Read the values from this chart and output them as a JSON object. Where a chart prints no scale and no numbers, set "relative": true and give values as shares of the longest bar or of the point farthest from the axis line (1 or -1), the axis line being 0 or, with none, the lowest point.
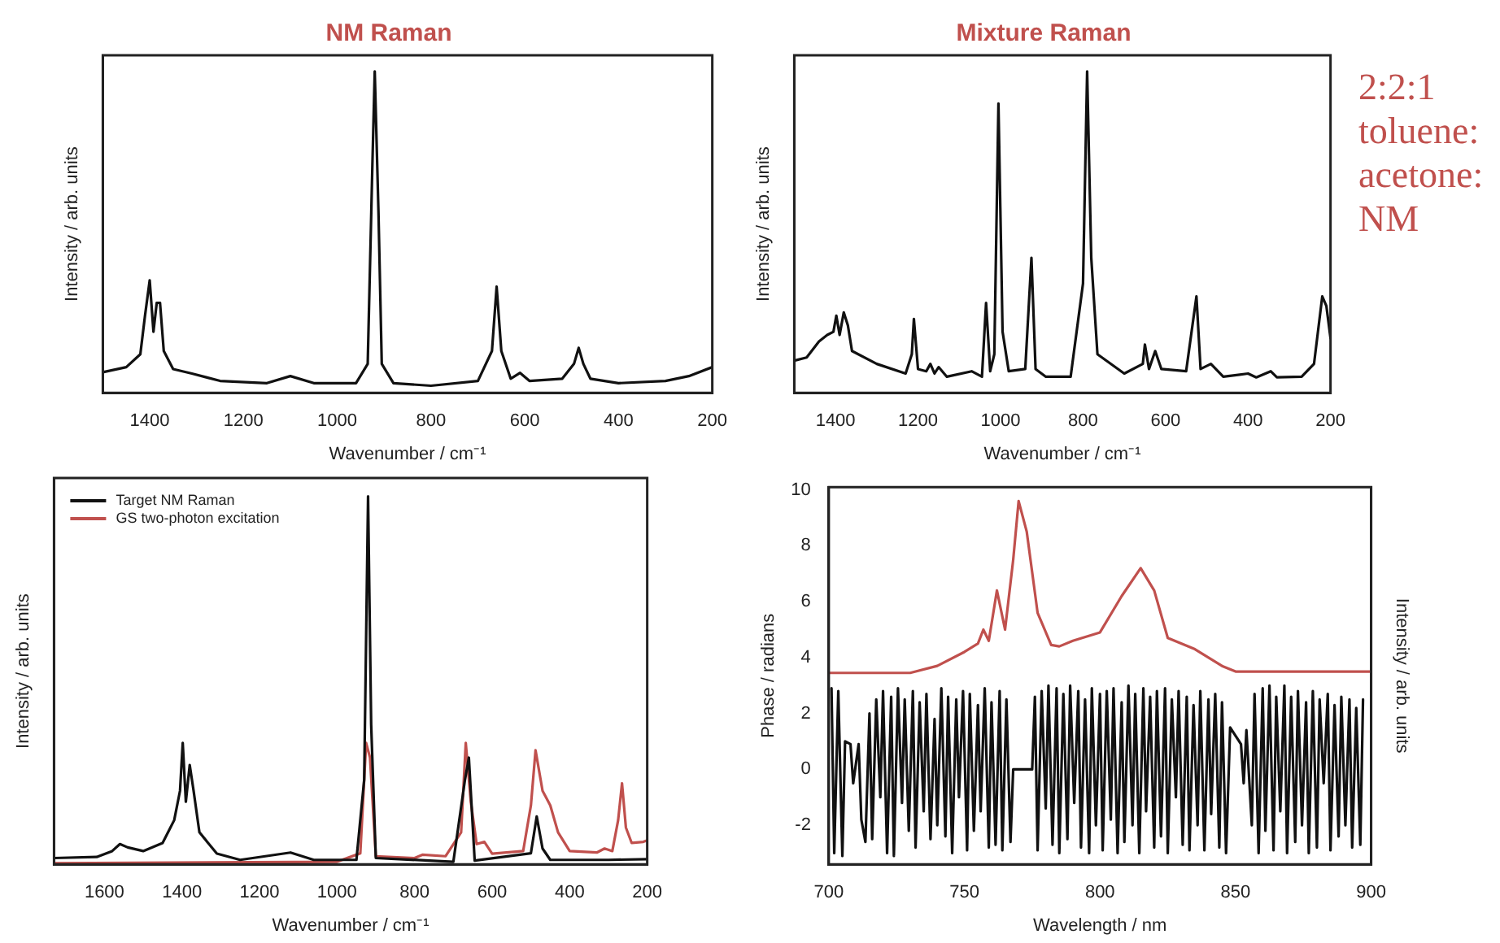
{
  "chart_data": [
    {
      "type": "line",
      "title": "NM Raman",
      "xlabel": "Wavenumber / cm⁻¹",
      "ylabel": "Intensity / arb. units",
      "relative": true,
      "xlim": [
        1500,
        200
      ],
      "xticks": [
        1400,
        1200,
        1000,
        800,
        600,
        400,
        200
      ],
      "legend": false,
      "series": [
        {
          "color": "#111111",
          "x": [
            1500,
            1450,
            1420,
            1410,
            1400,
            1392,
            1385,
            1378,
            1370,
            1350,
            1310,
            1250,
            1150,
            1100,
            1050,
            960,
            935,
            925,
            920,
            912,
            905,
            880,
            800,
            700,
            670,
            660,
            650,
            630,
            610,
            590,
            520,
            495,
            485,
            475,
            460,
            400,
            300,
            250,
            200
          ],
          "values": [
            0.064,
            0.08,
            0.12,
            0.24,
            0.35,
            0.19,
            0.28,
            0.28,
            0.13,
            0.074,
            0.06,
            0.037,
            0.03,
            0.052,
            0.03,
            0.03,
            0.09,
            0.71,
            1,
            0.56,
            0.09,
            0.03,
            0.022,
            0.037,
            0.13,
            0.33,
            0.13,
            0.044,
            0.062,
            0.037,
            0.044,
            0.09,
            0.14,
            0.09,
            0.044,
            0.03,
            0.037,
            0.052,
            0.08
          ]
        }
      ]
    },
    {
      "type": "line",
      "title": "Mixture Raman",
      "xlabel": "Wavenumber / cm⁻¹",
      "ylabel": "Intensity / arb. units",
      "relative": true,
      "xlim": [
        1500,
        200
      ],
      "xticks": [
        1400,
        1200,
        1000,
        800,
        600,
        400,
        200
      ],
      "legend": false,
      "annotations": [
        "2:2:1 toluene: acetone: NM"
      ],
      "series": [
        {
          "color": "#111111",
          "x": [
            1500,
            1470,
            1440,
            1420,
            1405,
            1398,
            1390,
            1380,
            1370,
            1360,
            1300,
            1230,
            1215,
            1210,
            1200,
            1180,
            1170,
            1160,
            1150,
            1130,
            1070,
            1045,
            1035,
            1025,
            1015,
            1005,
            995,
            980,
            940,
            925,
            915,
            890,
            830,
            800,
            790,
            780,
            765,
            700,
            655,
            650,
            640,
            625,
            610,
            550,
            525,
            515,
            490,
            460,
            400,
            380,
            345,
            330,
            270,
            240,
            220,
            210,
            200
          ],
          "values": [
            0.1,
            0.11,
            0.16,
            0.18,
            0.19,
            0.24,
            0.18,
            0.25,
            0.21,
            0.13,
            0.09,
            0.06,
            0.12,
            0.23,
            0.074,
            0.067,
            0.09,
            0.06,
            0.08,
            0.05,
            0.067,
            0.05,
            0.28,
            0.067,
            0.12,
            0.9,
            0.19,
            0.067,
            0.074,
            0.42,
            0.074,
            0.05,
            0.05,
            0.34,
            1,
            0.42,
            0.12,
            0.06,
            0.09,
            0.15,
            0.074,
            0.13,
            0.074,
            0.067,
            0.3,
            0.074,
            0.09,
            0.05,
            0.06,
            0.048,
            0.067,
            0.048,
            0.05,
            0.09,
            0.3,
            0.27,
            0.17
          ]
        }
      ]
    },
    {
      "type": "line",
      "xlabel": "Wavenumber / cm⁻¹",
      "ylabel": "Intensity / arb. units",
      "relative": true,
      "xlim": [
        1730,
        200
      ],
      "xticks": [
        1600,
        1400,
        1200,
        1000,
        800,
        600,
        400,
        200
      ],
      "legend": "top left",
      "series": [
        {
          "name": "Target NM Raman",
          "color": "#111111",
          "x": [
            1730,
            1620,
            1580,
            1560,
            1540,
            1500,
            1450,
            1420,
            1405,
            1398,
            1390,
            1380,
            1370,
            1355,
            1310,
            1250,
            1120,
            1060,
            950,
            930,
            920,
            912,
            900,
            700,
            670,
            660,
            645,
            500,
            485,
            470,
            450,
            300,
            200
          ],
          "values": [
            0.017,
            0.02,
            0.036,
            0.055,
            0.046,
            0.036,
            0.058,
            0.12,
            0.2,
            0.33,
            0.17,
            0.27,
            0.2,
            0.087,
            0.029,
            0.012,
            0.032,
            0.012,
            0.012,
            0.23,
            1,
            0.38,
            0.017,
            0.007,
            0.23,
            0.29,
            0.01,
            0.03,
            0.13,
            0.043,
            0.012,
            0.012,
            0.014
          ]
        },
        {
          "name": "GS two-photon excitation",
          "color": "#c0504d",
          "x": [
            1730,
            1000,
            940,
            925,
            915,
            900,
            800,
            780,
            720,
            680,
            668,
            655,
            640,
            620,
            600,
            520,
            500,
            488,
            470,
            450,
            430,
            400,
            330,
            310,
            290,
            275,
            265,
            255,
            240,
            210,
            200
          ],
          "values": [
            0.003,
            0.007,
            0.03,
            0.33,
            0.29,
            0.022,
            0.017,
            0.026,
            0.022,
            0.087,
            0.33,
            0.17,
            0.055,
            0.061,
            0.029,
            0.036,
            0.16,
            0.31,
            0.2,
            0.16,
            0.087,
            0.036,
            0.032,
            0.043,
            0.036,
            0.12,
            0.22,
            0.1,
            0.058,
            0.061,
            0.065
          ]
        }
      ]
    },
    {
      "type": "line",
      "xlabel": "Wavelength / nm",
      "ylabel": "Phase / radians",
      "y2label": "Intensity / arb. units",
      "xlim": [
        700,
        900
      ],
      "xticks": [
        700,
        750,
        800,
        850,
        900
      ],
      "ylim": [
        -3.4,
        10.1
      ],
      "yticks": [
        -2,
        0,
        2,
        4,
        6,
        8,
        10
      ],
      "legend": false,
      "series": [
        {
          "color": "#c0504d",
          "x": [
            700,
            730,
            740,
            750,
            755,
            757,
            759,
            762,
            765,
            768,
            770,
            773,
            777,
            782,
            785,
            790,
            800,
            808,
            815,
            820,
            825,
            835,
            845,
            850,
            900
          ],
          "values": [
            3.45,
            3.45,
            3.7,
            4.2,
            4.5,
            5,
            4.6,
            6.4,
            5,
            7.5,
            9.6,
            8.5,
            5.6,
            4.45,
            4.4,
            4.6,
            4.9,
            6.2,
            7.2,
            6.4,
            4.7,
            4.3,
            3.7,
            3.5,
            3.5
          ]
        },
        {
          "color": "#111111",
          "x": [
            701,
            702,
            703.5,
            705,
            706,
            708,
            709,
            711,
            712,
            713.5,
            715,
            716,
            717.5,
            719,
            720,
            721.5,
            723,
            724,
            725.5,
            727,
            728,
            729.5,
            731,
            732,
            733.5,
            735,
            736,
            737.5,
            739,
            740,
            741.5,
            743,
            744,
            745.5,
            747,
            748,
            749.5,
            751,
            752,
            753.5,
            755,
            756,
            757.5,
            759,
            760,
            761.5,
            763,
            764,
            765.5,
            767,
            768,
            775,
            776,
            777,
            778.5,
            780,
            781,
            782.5,
            784,
            785,
            786.5,
            788,
            789,
            790.5,
            792,
            793,
            794.5,
            796,
            797,
            798.5,
            800,
            801,
            802.5,
            804,
            805,
            806.5,
            808,
            809,
            810.5,
            812,
            813,
            814.5,
            816,
            817,
            818.5,
            820,
            821,
            822.5,
            824,
            825,
            826.5,
            828,
            829,
            830.5,
            832,
            833,
            834.5,
            836,
            837,
            838.5,
            840,
            841,
            842.5,
            844,
            845,
            846.5,
            848,
            850,
            852,
            853,
            854,
            856,
            857,
            858.5,
            860,
            861,
            862.5,
            864,
            865,
            866.5,
            868,
            869,
            870.5,
            872,
            873,
            874.5,
            876,
            877,
            878.5,
            880,
            881,
            882.5,
            884,
            885,
            886.5,
            888,
            889,
            890.5,
            892,
            893,
            894.5,
            896,
            897
          ],
          "values": [
            2.9,
            -3,
            2.8,
            -3.1,
            1,
            0.9,
            -0.5,
            0.9,
            -1.8,
            -2.6,
            2,
            -2.5,
            2.5,
            -1,
            2.8,
            -3,
            2.6,
            -3.1,
            2.9,
            -1.2,
            2.5,
            -2.2,
            2.8,
            -2.8,
            2.4,
            -1.5,
            2.7,
            -2.5,
            1.8,
            -2,
            2.9,
            -2.4,
            2.6,
            -3,
            2.5,
            -1,
            2.8,
            -2.9,
            2.7,
            -2.2,
            2.3,
            -1.5,
            2.9,
            -2.8,
            2.4,
            -2.7,
            2.8,
            -2.9,
            2.5,
            -2.6,
            0,
            0,
            2.6,
            -2.9,
            2.8,
            -1.4,
            3,
            -2.7,
            2.9,
            -3,
            2.7,
            -2.5,
            3,
            -1.2,
            2.8,
            -2.8,
            2.5,
            -3,
            2.9,
            -2,
            2.7,
            -2.9,
            2.8,
            -1.8,
            2.9,
            -3,
            2.4,
            -2.6,
            3,
            -2,
            2.7,
            -3,
            2.9,
            -1.5,
            2.6,
            -2.8,
            2.8,
            -2.4,
            2.9,
            -3,
            2.5,
            -1,
            2.8,
            -2.7,
            2.6,
            -2.9,
            2.3,
            -2,
            2.8,
            -2.9,
            2.5,
            -1.6,
            2.7,
            -2.8,
            2.4,
            -3,
            1.5,
            1.2,
            0.9,
            -0.5,
            1.4,
            -2,
            2.7,
            -3,
            2.9,
            -2.2,
            3,
            -2.9,
            2.6,
            -1.5,
            3,
            -3,
            2.6,
            -2.6,
            2.8,
            -2,
            2.4,
            -3,
            2.8,
            -2.8,
            2.5,
            -0.5,
            2.7,
            -2.9,
            2.3,
            -2.4,
            2.6,
            -2,
            2.5,
            -2.8,
            2.2,
            -2.7,
            2.5
          ]
        }
      ]
    }
  ]
}
